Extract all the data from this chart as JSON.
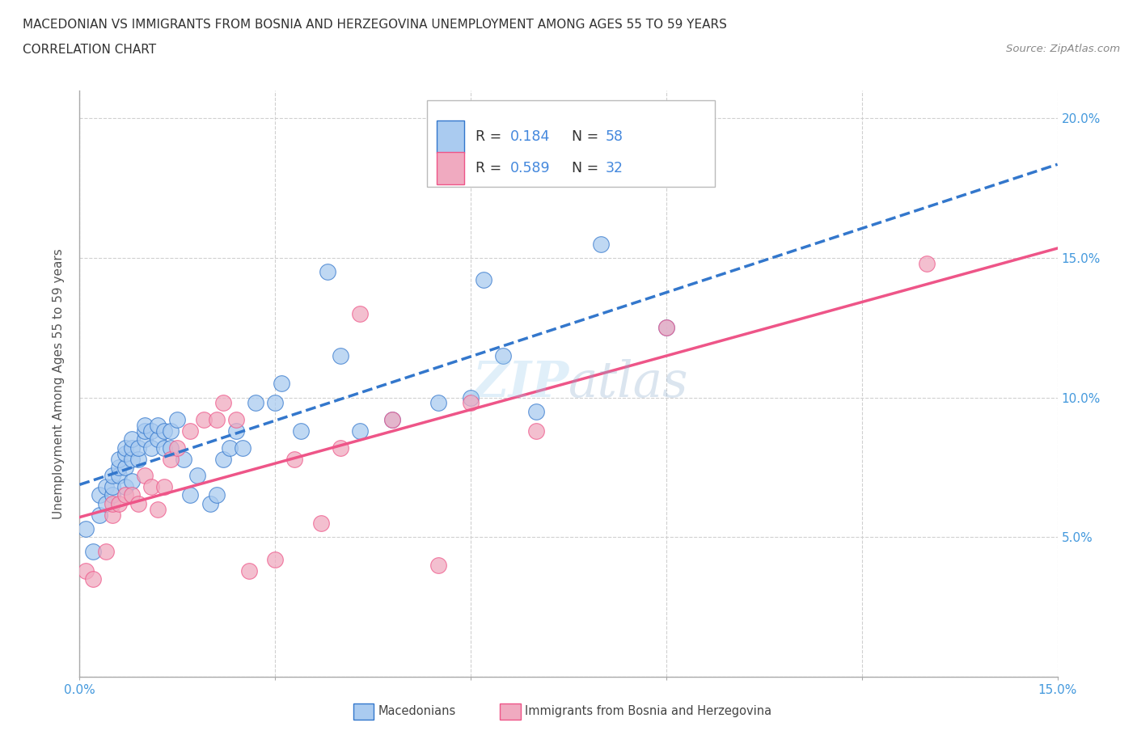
{
  "title_line1": "MACEDONIAN VS IMMIGRANTS FROM BOSNIA AND HERZEGOVINA UNEMPLOYMENT AMONG AGES 55 TO 59 YEARS",
  "title_line2": "CORRELATION CHART",
  "source_text": "Source: ZipAtlas.com",
  "ylabel": "Unemployment Among Ages 55 to 59 years",
  "xlim": [
    0.0,
    0.15
  ],
  "ylim": [
    0.0,
    0.21
  ],
  "xticks": [
    0.0,
    0.03,
    0.06,
    0.09,
    0.12,
    0.15
  ],
  "xticklabels": [
    "0.0%",
    "",
    "",
    "",
    "",
    "15.0%"
  ],
  "yticks": [
    0.0,
    0.05,
    0.1,
    0.15,
    0.2
  ],
  "yticklabels": [
    "",
    "5.0%",
    "10.0%",
    "15.0%",
    "20.0%"
  ],
  "grid_color": "#d0d0d0",
  "background_color": "#ffffff",
  "macedonian_color": "#aacbf0",
  "immigrant_color": "#f0aac0",
  "macedonian_line_color": "#3377cc",
  "immigrant_line_color": "#ee5588",
  "legend_R1": "0.184",
  "legend_N1": "58",
  "legend_R2": "0.589",
  "legend_N2": "32",
  "watermark": "ZIPatlas",
  "macedonian_x": [
    0.001,
    0.002,
    0.003,
    0.003,
    0.004,
    0.004,
    0.005,
    0.005,
    0.005,
    0.006,
    0.006,
    0.006,
    0.007,
    0.007,
    0.007,
    0.007,
    0.008,
    0.008,
    0.008,
    0.008,
    0.009,
    0.009,
    0.01,
    0.01,
    0.01,
    0.011,
    0.011,
    0.012,
    0.012,
    0.013,
    0.013,
    0.014,
    0.014,
    0.015,
    0.016,
    0.017,
    0.018,
    0.02,
    0.021,
    0.022,
    0.023,
    0.024,
    0.025,
    0.027,
    0.03,
    0.031,
    0.034,
    0.038,
    0.04,
    0.043,
    0.048,
    0.055,
    0.06,
    0.062,
    0.065,
    0.07,
    0.08,
    0.09
  ],
  "macedonian_y": [
    0.053,
    0.045,
    0.058,
    0.065,
    0.062,
    0.068,
    0.065,
    0.068,
    0.072,
    0.072,
    0.075,
    0.078,
    0.068,
    0.075,
    0.08,
    0.082,
    0.07,
    0.078,
    0.082,
    0.085,
    0.078,
    0.082,
    0.085,
    0.088,
    0.09,
    0.082,
    0.088,
    0.085,
    0.09,
    0.082,
    0.088,
    0.082,
    0.088,
    0.092,
    0.078,
    0.065,
    0.072,
    0.062,
    0.065,
    0.078,
    0.082,
    0.088,
    0.082,
    0.098,
    0.098,
    0.105,
    0.088,
    0.145,
    0.115,
    0.088,
    0.092,
    0.098,
    0.1,
    0.142,
    0.115,
    0.095,
    0.155,
    0.125
  ],
  "immigrant_x": [
    0.001,
    0.002,
    0.004,
    0.005,
    0.005,
    0.006,
    0.007,
    0.008,
    0.009,
    0.01,
    0.011,
    0.012,
    0.013,
    0.014,
    0.015,
    0.017,
    0.019,
    0.021,
    0.022,
    0.024,
    0.026,
    0.03,
    0.033,
    0.037,
    0.04,
    0.043,
    0.048,
    0.055,
    0.06,
    0.07,
    0.09,
    0.13
  ],
  "immigrant_y": [
    0.038,
    0.035,
    0.045,
    0.058,
    0.062,
    0.062,
    0.065,
    0.065,
    0.062,
    0.072,
    0.068,
    0.06,
    0.068,
    0.078,
    0.082,
    0.088,
    0.092,
    0.092,
    0.098,
    0.092,
    0.038,
    0.042,
    0.078,
    0.055,
    0.082,
    0.13,
    0.092,
    0.04,
    0.098,
    0.088,
    0.125,
    0.148
  ]
}
